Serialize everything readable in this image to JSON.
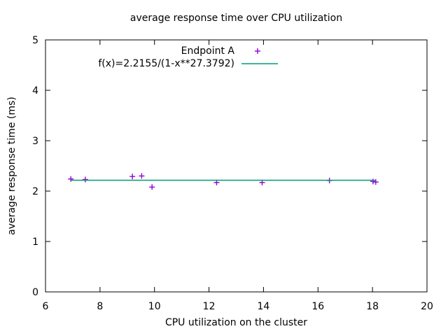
{
  "title": "average response time over CPU utilization",
  "chart_data": {
    "type": "scatter",
    "title": "average response time over CPU utilization",
    "xlabel": "CPU utilization on the cluster",
    "ylabel": "average response time (ms)",
    "xlim": [
      6,
      20
    ],
    "ylim": [
      0,
      5
    ],
    "xticks": [
      6,
      8,
      10,
      12,
      14,
      16,
      18,
      20
    ],
    "yticks": [
      0,
      1,
      2,
      3,
      4,
      5
    ],
    "grid": false,
    "tick_style": "inward on all four borders",
    "legend_position": "top-center-inside",
    "series": [
      {
        "name": "Endpoint A",
        "type": "scatter",
        "marker": "plus",
        "color": "#9400d3",
        "points": [
          [
            6.93,
            2.24
          ],
          [
            7.46,
            2.23
          ],
          [
            9.19,
            2.29
          ],
          [
            9.53,
            2.3
          ],
          [
            9.91,
            2.08
          ],
          [
            12.28,
            2.17
          ],
          [
            13.95,
            2.17
          ],
          [
            16.42,
            2.21
          ],
          [
            18.02,
            2.19
          ],
          [
            18.12,
            2.18
          ]
        ]
      },
      {
        "name": "f(x)=2.2155/(1-x**27.3792)",
        "type": "line",
        "color": "#009e73",
        "y_value": 2.2155,
        "x_range": [
          6.93,
          18.12
        ],
        "points": [
          [
            6.93,
            2.2155
          ],
          [
            18.12,
            2.2155
          ]
        ]
      }
    ]
  },
  "legend": {
    "items": [
      {
        "label": "Endpoint A",
        "marker": "plus",
        "color": "#9400d3"
      },
      {
        "label": "f(x)=2.2155/(1-x**27.3792)",
        "marker": "line",
        "color": "#009e73"
      }
    ]
  },
  "colors": {
    "background": "#ffffff",
    "axis": "#000000",
    "text": "#000000",
    "points": "#9400d3",
    "fit_line": "#009e73"
  }
}
